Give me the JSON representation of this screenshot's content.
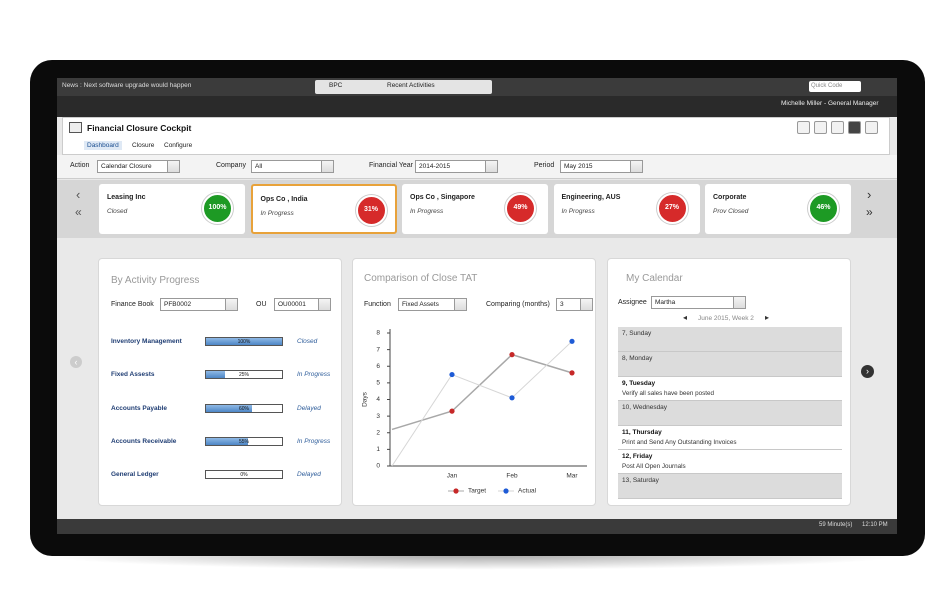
{
  "header": {
    "news": "News : Next software upgrade would happen",
    "menu": "BPC",
    "recent": "Recent Activities",
    "quick_code": "Quick Code",
    "user": "Michelle Miller - General Manager"
  },
  "app": {
    "title": "Financial Closure Cockpit",
    "tabs": [
      "Dashboard",
      "Closure",
      "Configure"
    ]
  },
  "filters": [
    {
      "label": "Action",
      "value": "Calendar Closure"
    },
    {
      "label": "Company",
      "value": "All"
    },
    {
      "label": "Financial Year",
      "value": "2014-2015"
    },
    {
      "label": "Period",
      "value": "May 2015"
    }
  ],
  "companies": [
    {
      "name": "Leasing Inc",
      "status": "Closed",
      "percent": 100,
      "percent_label": "100%",
      "color": "#1d9a24"
    },
    {
      "name": "Ops Co , India",
      "status": "In Progress",
      "percent": 31,
      "percent_label": "31%",
      "color": "#d62a2a"
    },
    {
      "name": "Ops Co , Singapore",
      "status": "In Progress",
      "percent": 49,
      "percent_label": "49%",
      "color": "#d62a2a"
    },
    {
      "name": "Engineering, AUS",
      "status": "In Progress",
      "percent": 27,
      "percent_label": "27%",
      "color": "#d62a2a"
    },
    {
      "name": "Corporate",
      "status": "Prov Closed",
      "percent": 46,
      "percent_label": "46%",
      "color": "#1d9a24"
    }
  ],
  "activity": {
    "title": "By Activity Progress",
    "filters": [
      {
        "label": "Finance Book",
        "value": "PFB0002"
      },
      {
        "label": "OU",
        "value": "OU00001"
      }
    ],
    "rows": [
      {
        "name": "Inventory Management",
        "value": 100,
        "value_label": "100%",
        "status": "Closed"
      },
      {
        "name": "Fixed Assests",
        "value": 25,
        "value_label": "25%",
        "status": "In Progress"
      },
      {
        "name": "Accounts Payable",
        "value": 60,
        "value_label": "60%",
        "status": "Delayed"
      },
      {
        "name": "Accounts Receivable",
        "value": 55,
        "value_label": "55%",
        "status": "In Progress"
      },
      {
        "name": "General Ledger",
        "value": 0,
        "value_label": "0%",
        "status": "Delayed"
      }
    ]
  },
  "comparison": {
    "title": "Comparison of Close TAT",
    "filters": [
      {
        "label": "Function",
        "value": "Fixed Assets"
      },
      {
        "label": "Comparing (months)",
        "value": "3"
      }
    ]
  },
  "chart_data": {
    "type": "line",
    "y_label": "Days",
    "categories": [
      null,
      "Jan",
      "Feb",
      "Mar"
    ],
    "series": [
      {
        "name": "Target",
        "color": "#c62828",
        "line_color": "#a8a8a8",
        "values": [
          2.2,
          3.3,
          6.7,
          5.6
        ]
      },
      {
        "name": "Actual",
        "color": "#1e5bd6",
        "line_color": "#d6d6d6",
        "values": [
          0,
          5.5,
          4.1,
          7.5
        ]
      }
    ],
    "ylim": [
      0,
      8
    ],
    "yticks": [
      0,
      1,
      2,
      3,
      4,
      5,
      6,
      7,
      8
    ]
  },
  "calendar": {
    "title": "My Calendar",
    "assignee_label": "Assignee",
    "assignee": "Martha",
    "week": "June 2015, Week 2",
    "days": [
      {
        "day": "7, Sunday"
      },
      {
        "day": "8, Monday"
      },
      {
        "day": "9, Tuesday",
        "task": "Verify all sales have been posted"
      },
      {
        "day": "10, Wednesday"
      },
      {
        "day": "11, Thursday",
        "task": "Print and Send Any Outstanding Invoices"
      },
      {
        "day": "12, Friday",
        "task": "Post All Open Journals"
      },
      {
        "day": "13, Saturday"
      }
    ]
  },
  "status": {
    "session": "59 Minute(s)",
    "time": "12:10 PM"
  }
}
